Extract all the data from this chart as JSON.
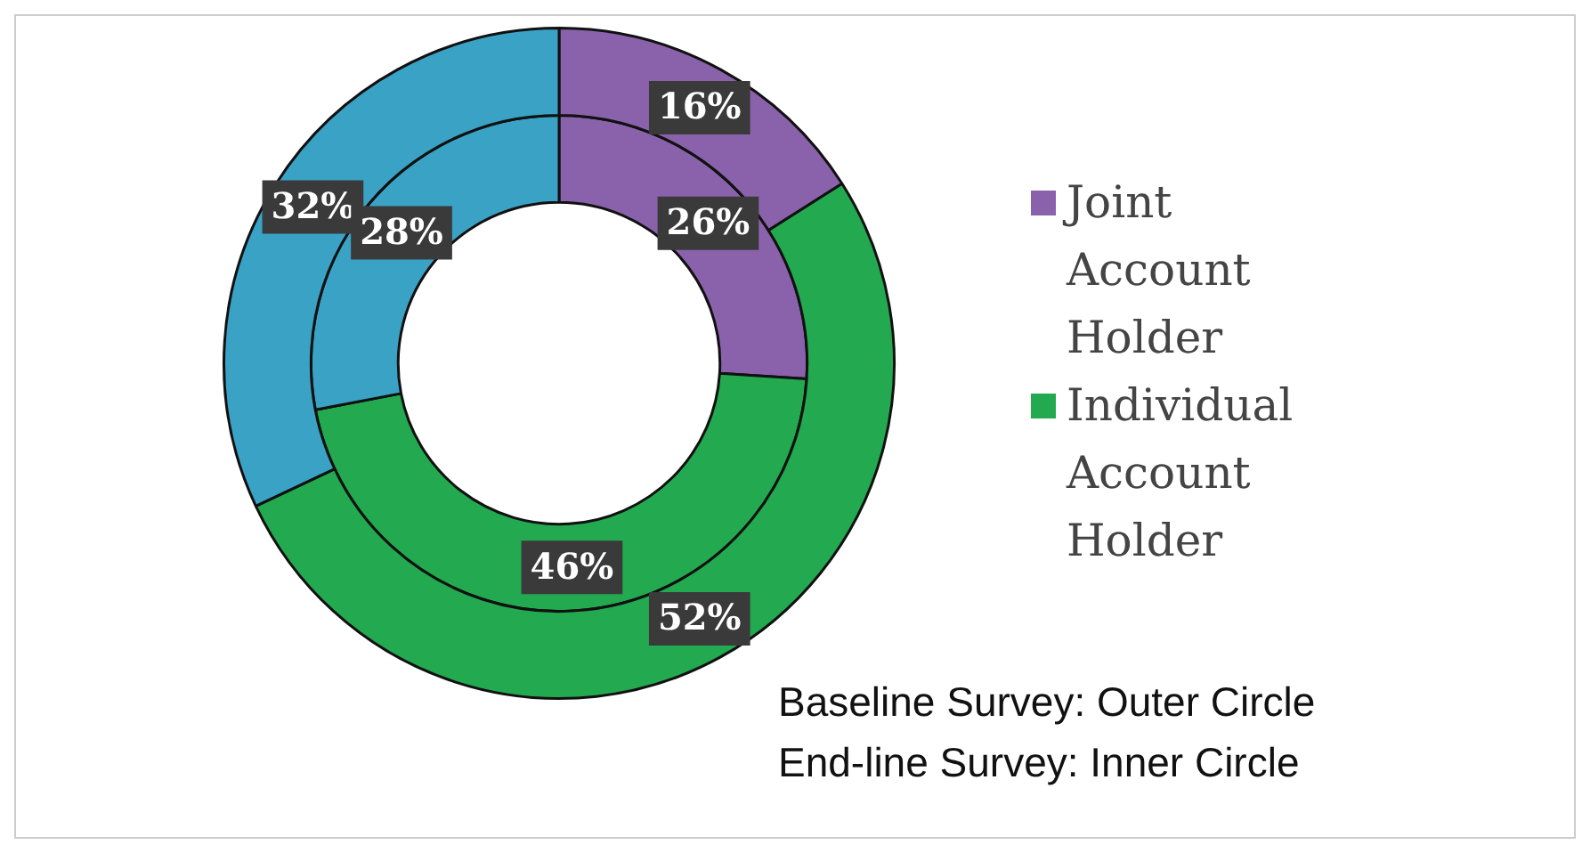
{
  "chart_data": {
    "type": "donut",
    "categories": [
      "Joint Account Holder",
      "Individual Account Holder",
      null
    ],
    "colors": [
      "#8a62ac",
      "#23a94f",
      "#3aa2c4"
    ],
    "series": [
      {
        "values": [
          16,
          52,
          32
        ],
        "value_labels": [
          "16%",
          "52%",
          "32%"
        ]
      },
      {
        "values": [
          26,
          46,
          28
        ],
        "value_labels": [
          "26%",
          "46%",
          "28%"
        ]
      }
    ],
    "legend": "right",
    "annotations": [
      "Baseline Survey: Outer Circle",
      "End-line Survey: Inner Circle"
    ]
  }
}
